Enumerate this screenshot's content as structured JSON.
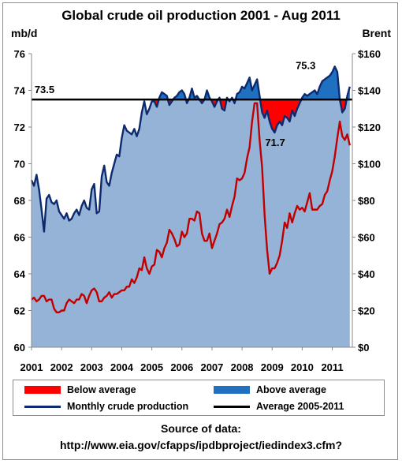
{
  "chart_data": {
    "type": "area",
    "title": "Global crude oil production  2001 - Aug 2011",
    "ylabel_left": "mb/d",
    "ylabel_right": "Brent",
    "xlim": [
      2001,
      2011.667
    ],
    "ylim_left": [
      60,
      76
    ],
    "ylim_right": [
      0,
      160
    ],
    "x_ticks": [
      "2001",
      "2002",
      "2003",
      "2004",
      "2005",
      "2006",
      "2007",
      "2008",
      "2009",
      "2010",
      "2011"
    ],
    "y_left_ticks": [
      "60",
      "62",
      "64",
      "66",
      "68",
      "70",
      "72",
      "74",
      "76"
    ],
    "y_right_ticks": [
      "$0",
      "$20",
      "$40",
      "$60",
      "$80",
      "$100",
      "$120",
      "$140",
      "$160"
    ],
    "average": 73.5,
    "average_label": "73.5",
    "annotations": [
      {
        "text": "75.3",
        "x": 2010.55,
        "y": 75.3
      },
      {
        "text": "71.7",
        "x": 2009.1,
        "y": 71.7
      }
    ],
    "series": [
      {
        "name": "Monthly crude production",
        "axis": "left",
        "color": "#0d2a6e",
        "x": [
          2001.0,
          2001.083,
          2001.167,
          2001.25,
          2001.333,
          2001.417,
          2001.5,
          2001.583,
          2001.667,
          2001.75,
          2001.833,
          2001.917,
          2002.0,
          2002.083,
          2002.167,
          2002.25,
          2002.333,
          2002.417,
          2002.5,
          2002.583,
          2002.667,
          2002.75,
          2002.833,
          2002.917,
          2003.0,
          2003.083,
          2003.167,
          2003.25,
          2003.333,
          2003.417,
          2003.5,
          2003.583,
          2003.667,
          2003.75,
          2003.833,
          2003.917,
          2004.0,
          2004.083,
          2004.167,
          2004.25,
          2004.333,
          2004.417,
          2004.5,
          2004.583,
          2004.667,
          2004.75,
          2004.833,
          2004.917,
          2005.0,
          2005.083,
          2005.167,
          2005.25,
          2005.333,
          2005.417,
          2005.5,
          2005.583,
          2005.667,
          2005.75,
          2005.833,
          2005.917,
          2006.0,
          2006.083,
          2006.167,
          2006.25,
          2006.333,
          2006.417,
          2006.5,
          2006.583,
          2006.667,
          2006.75,
          2006.833,
          2006.917,
          2007.0,
          2007.083,
          2007.167,
          2007.25,
          2007.333,
          2007.417,
          2007.5,
          2007.583,
          2007.667,
          2007.75,
          2007.833,
          2007.917,
          2008.0,
          2008.083,
          2008.167,
          2008.25,
          2008.333,
          2008.417,
          2008.5,
          2008.583,
          2008.667,
          2008.75,
          2008.833,
          2008.917,
          2009.0,
          2009.083,
          2009.167,
          2009.25,
          2009.333,
          2009.417,
          2009.5,
          2009.583,
          2009.667,
          2009.75,
          2009.833,
          2009.917,
          2010.0,
          2010.083,
          2010.167,
          2010.25,
          2010.333,
          2010.417,
          2010.5,
          2010.583,
          2010.667,
          2010.75,
          2010.833,
          2010.917,
          2011.0,
          2011.083,
          2011.167,
          2011.25,
          2011.333,
          2011.417,
          2011.5,
          2011.583
        ],
        "values": [
          69.1,
          68.8,
          69.4,
          68.6,
          67.5,
          66.3,
          68.1,
          68.3,
          67.9,
          67.8,
          68.0,
          67.4,
          67.2,
          67.0,
          67.3,
          66.9,
          67.0,
          67.3,
          67.5,
          67.2,
          67.7,
          68.0,
          67.6,
          67.5,
          68.6,
          68.9,
          67.3,
          67.4,
          69.3,
          69.9,
          69.0,
          68.8,
          69.5,
          70.0,
          70.5,
          70.4,
          71.4,
          72.1,
          71.8,
          71.7,
          71.6,
          71.9,
          71.5,
          71.9,
          72.8,
          73.4,
          72.7,
          73.0,
          73.4,
          73.4,
          73.1,
          73.6,
          73.9,
          73.8,
          73.7,
          73.2,
          73.4,
          73.6,
          73.7,
          73.9,
          74.0,
          73.8,
          73.3,
          73.6,
          74.1,
          73.6,
          73.7,
          73.5,
          73.3,
          73.5,
          74.0,
          73.6,
          73.4,
          73.1,
          73.4,
          73.6,
          73.0,
          72.9,
          73.6,
          73.4,
          73.6,
          73.3,
          73.8,
          73.9,
          74.2,
          74.1,
          74.4,
          74.7,
          74.0,
          74.3,
          74.6,
          73.7,
          72.8,
          72.5,
          72.9,
          72.3,
          71.9,
          71.7,
          72.1,
          72.3,
          72.1,
          72.6,
          72.5,
          72.3,
          72.9,
          72.6,
          73.0,
          73.3,
          73.6,
          73.8,
          73.7,
          73.8,
          73.9,
          74.0,
          73.8,
          74.2,
          74.5,
          74.6,
          74.7,
          74.8,
          75.0,
          75.3,
          75.0,
          73.5,
          72.8,
          73.0,
          73.7,
          74.2
        ]
      },
      {
        "name": "Brent",
        "axis": "right",
        "color": "#c00000",
        "x": [
          2001.0,
          2001.083,
          2001.167,
          2001.25,
          2001.333,
          2001.417,
          2001.5,
          2001.583,
          2001.667,
          2001.75,
          2001.833,
          2001.917,
          2002.0,
          2002.083,
          2002.167,
          2002.25,
          2002.333,
          2002.417,
          2002.5,
          2002.583,
          2002.667,
          2002.75,
          2002.833,
          2002.917,
          2003.0,
          2003.083,
          2003.167,
          2003.25,
          2003.333,
          2003.417,
          2003.5,
          2003.583,
          2003.667,
          2003.75,
          2003.833,
          2003.917,
          2004.0,
          2004.083,
          2004.167,
          2004.25,
          2004.333,
          2004.417,
          2004.5,
          2004.583,
          2004.667,
          2004.75,
          2004.833,
          2004.917,
          2005.0,
          2005.083,
          2005.167,
          2005.25,
          2005.333,
          2005.417,
          2005.5,
          2005.583,
          2005.667,
          2005.75,
          2005.833,
          2005.917,
          2006.0,
          2006.083,
          2006.167,
          2006.25,
          2006.333,
          2006.417,
          2006.5,
          2006.583,
          2006.667,
          2006.75,
          2006.833,
          2006.917,
          2007.0,
          2007.083,
          2007.167,
          2007.25,
          2007.333,
          2007.417,
          2007.5,
          2007.583,
          2007.667,
          2007.75,
          2007.833,
          2007.917,
          2008.0,
          2008.083,
          2008.167,
          2008.25,
          2008.333,
          2008.417,
          2008.5,
          2008.583,
          2008.667,
          2008.75,
          2008.833,
          2008.917,
          2009.0,
          2009.083,
          2009.167,
          2009.25,
          2009.333,
          2009.417,
          2009.5,
          2009.583,
          2009.667,
          2009.75,
          2009.833,
          2009.917,
          2010.0,
          2010.083,
          2010.167,
          2010.25,
          2010.333,
          2010.417,
          2010.5,
          2010.583,
          2010.667,
          2010.75,
          2010.833,
          2010.917,
          2011.0,
          2011.083,
          2011.167,
          2011.25,
          2011.333,
          2011.417,
          2011.5,
          2011.583
        ],
        "values": [
          26,
          27,
          25,
          26,
          28,
          28,
          25,
          26,
          26,
          21,
          19,
          19,
          20,
          20,
          24,
          26,
          25,
          24,
          26,
          26,
          29,
          28,
          24,
          28,
          31,
          32,
          30,
          25,
          25,
          27,
          28,
          30,
          27,
          29,
          29,
          30,
          31,
          31,
          33,
          33,
          37,
          35,
          38,
          43,
          42,
          49,
          43,
          40,
          44,
          45,
          53,
          52,
          49,
          54,
          57,
          64,
          62,
          59,
          55,
          56,
          63,
          60,
          62,
          70,
          70,
          69,
          74,
          73,
          62,
          58,
          58,
          62,
          54,
          58,
          62,
          67,
          68,
          70,
          75,
          71,
          77,
          82,
          92,
          91,
          92,
          95,
          103,
          109,
          123,
          133,
          133,
          113,
          98,
          72,
          53,
          40,
          43,
          43,
          46,
          50,
          58,
          68,
          65,
          73,
          68,
          73,
          77,
          75,
          76,
          74,
          79,
          84,
          75,
          75,
          75,
          77,
          78,
          83,
          85,
          91,
          96,
          104,
          114,
          123,
          115,
          113,
          116,
          110
        ]
      }
    ],
    "legend": [
      {
        "label": "Below average",
        "kind": "fill",
        "color": "#ff0000"
      },
      {
        "label": "Above average",
        "kind": "fill",
        "color": "#1f70c1"
      },
      {
        "label": "Monthly crude production",
        "kind": "line",
        "color": "#0d2a6e"
      },
      {
        "label": "Average 2005-2011",
        "kind": "line",
        "color": "#000000"
      }
    ]
  },
  "source": {
    "line1": "Source of data:",
    "line2": "http://www.eia.gov/cfapps/ipdbproject/iedindex3.cfm?"
  }
}
